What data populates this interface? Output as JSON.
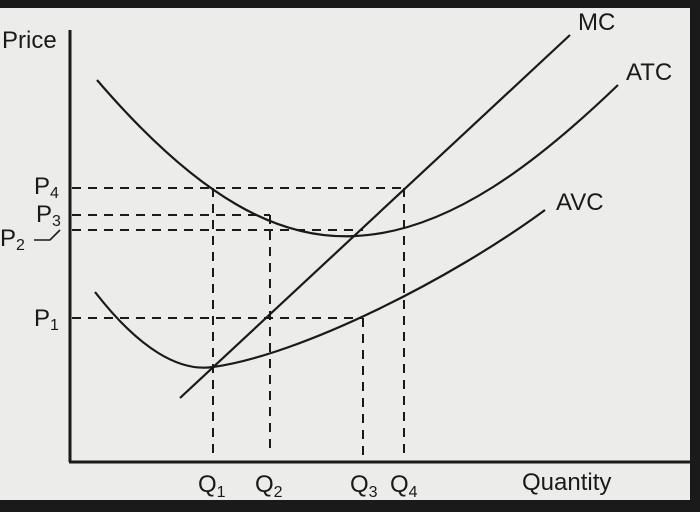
{
  "axes": {
    "y_label": "Price",
    "x_label": "Quantity"
  },
  "curves": [
    {
      "label": "MC"
    },
    {
      "label": "ATC"
    },
    {
      "label": "AVC"
    }
  ],
  "price_levels": [
    {
      "symbol": "P",
      "subscript": "1"
    },
    {
      "symbol": "P",
      "subscript": "2"
    },
    {
      "symbol": "P",
      "subscript": "3"
    },
    {
      "symbol": "P",
      "subscript": "4"
    }
  ],
  "quantities": [
    {
      "symbol": "Q",
      "subscript": "1"
    },
    {
      "symbol": "Q",
      "subscript": "2"
    },
    {
      "symbol": "Q",
      "subscript": "3"
    },
    {
      "symbol": "Q",
      "subscript": "4"
    }
  ]
}
